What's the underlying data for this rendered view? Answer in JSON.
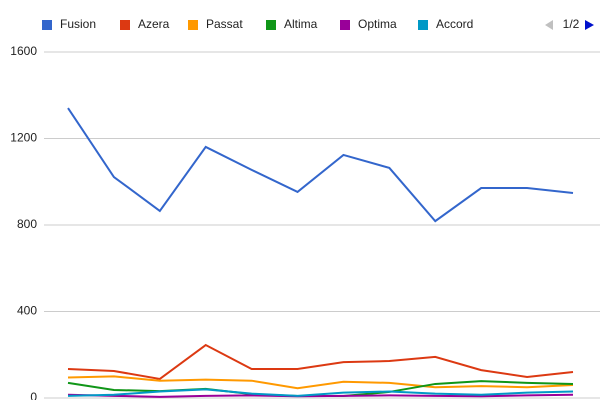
{
  "chart_data": {
    "type": "line",
    "legend_page": "1/2",
    "series": [
      {
        "name": "Fusion",
        "color": "#3366cc",
        "values": [
          1341,
          1022,
          865,
          1161,
          1055,
          953,
          1124,
          1064,
          818,
          971,
          971,
          948
        ]
      },
      {
        "name": "Azera",
        "color": "#dc3912",
        "values": [
          134,
          125,
          88,
          245,
          134,
          134,
          166,
          171,
          190,
          129,
          97,
          120
        ]
      },
      {
        "name": "Passat",
        "color": "#ff9900",
        "values": [
          95,
          100,
          80,
          85,
          80,
          45,
          75,
          70,
          50,
          55,
          50,
          60
        ]
      },
      {
        "name": "Altima",
        "color": "#109618",
        "values": [
          70,
          37,
          32,
          42,
          18,
          9,
          9,
          28,
          65,
          78,
          70,
          65
        ]
      },
      {
        "name": "Optima",
        "color": "#990099",
        "values": [
          15,
          10,
          5,
          10,
          12,
          8,
          10,
          12,
          10,
          8,
          12,
          15
        ]
      },
      {
        "name": "Accord",
        "color": "#0099c6",
        "values": [
          10,
          15,
          30,
          40,
          20,
          10,
          25,
          30,
          20,
          15,
          25,
          30
        ]
      }
    ],
    "ylim": [
      0,
      1600
    ],
    "yticks": [
      0,
      400,
      800,
      1200,
      1600
    ],
    "grid": true,
    "legend": "top"
  }
}
